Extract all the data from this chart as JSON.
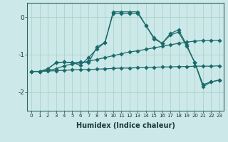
{
  "xlabel": "Humidex (Indice chaleur)",
  "bg_color": "#cce8e8",
  "grid_color": "#aad4cc",
  "line_color": "#1a6b6b",
  "xlim_min": -0.5,
  "xlim_max": 23.5,
  "ylim_min": -2.5,
  "ylim_max": 0.38,
  "yticks": [
    0,
    -1,
    -2
  ],
  "xticks": [
    0,
    1,
    2,
    3,
    4,
    5,
    6,
    7,
    8,
    9,
    10,
    11,
    12,
    13,
    14,
    15,
    16,
    17,
    18,
    19,
    20,
    21,
    22,
    23
  ],
  "line1_x": [
    0,
    1,
    2,
    3,
    4,
    5,
    6,
    7,
    8,
    9,
    10,
    11,
    12,
    13,
    14,
    15,
    16,
    17,
    18,
    19,
    20,
    21,
    22,
    23
  ],
  "line1_y": [
    -1.45,
    -1.45,
    -1.44,
    -1.43,
    -1.42,
    -1.41,
    -1.4,
    -1.4,
    -1.39,
    -1.38,
    -1.37,
    -1.36,
    -1.36,
    -1.35,
    -1.35,
    -1.34,
    -1.33,
    -1.33,
    -1.32,
    -1.32,
    -1.31,
    -1.31,
    -1.31,
    -1.3
  ],
  "line2_x": [
    0,
    1,
    2,
    3,
    4,
    5,
    6,
    7,
    8,
    9,
    10,
    11,
    12,
    13,
    14,
    15,
    16,
    17,
    18,
    19,
    20,
    21,
    22,
    23
  ],
  "line2_y": [
    -1.45,
    -1.45,
    -1.42,
    -1.38,
    -1.3,
    -1.25,
    -1.22,
    -1.18,
    -1.13,
    -1.08,
    -1.03,
    -0.98,
    -0.93,
    -0.9,
    -0.86,
    -0.82,
    -0.78,
    -0.74,
    -0.7,
    -0.67,
    -0.64,
    -0.63,
    -0.62,
    -0.62
  ],
  "line3_x": [
    0,
    1,
    2,
    3,
    4,
    5,
    6,
    7,
    8,
    9,
    10,
    11,
    12,
    13,
    14,
    15,
    16,
    17,
    18,
    19,
    20,
    21,
    22,
    23
  ],
  "line3_y": [
    -1.45,
    -1.45,
    -1.38,
    -1.22,
    -1.2,
    -1.22,
    -1.28,
    -1.08,
    -0.85,
    -0.68,
    0.14,
    0.14,
    0.14,
    0.14,
    -0.22,
    -0.55,
    -0.7,
    -0.48,
    -0.4,
    -0.78,
    -1.22,
    -1.8,
    -1.73,
    -1.68
  ],
  "line4_x": [
    2,
    3,
    4,
    5,
    6,
    7,
    8,
    9,
    10,
    11,
    12,
    13,
    14,
    15,
    16,
    17,
    18,
    19,
    20,
    21,
    22,
    23
  ],
  "line4_y": [
    -1.38,
    -1.22,
    -1.2,
    -1.22,
    -1.2,
    -1.22,
    -0.8,
    -0.68,
    0.1,
    0.1,
    0.1,
    0.1,
    -0.22,
    -0.58,
    -0.7,
    -0.44,
    -0.34,
    -0.74,
    -1.22,
    -1.86,
    -1.73,
    -1.68
  ]
}
